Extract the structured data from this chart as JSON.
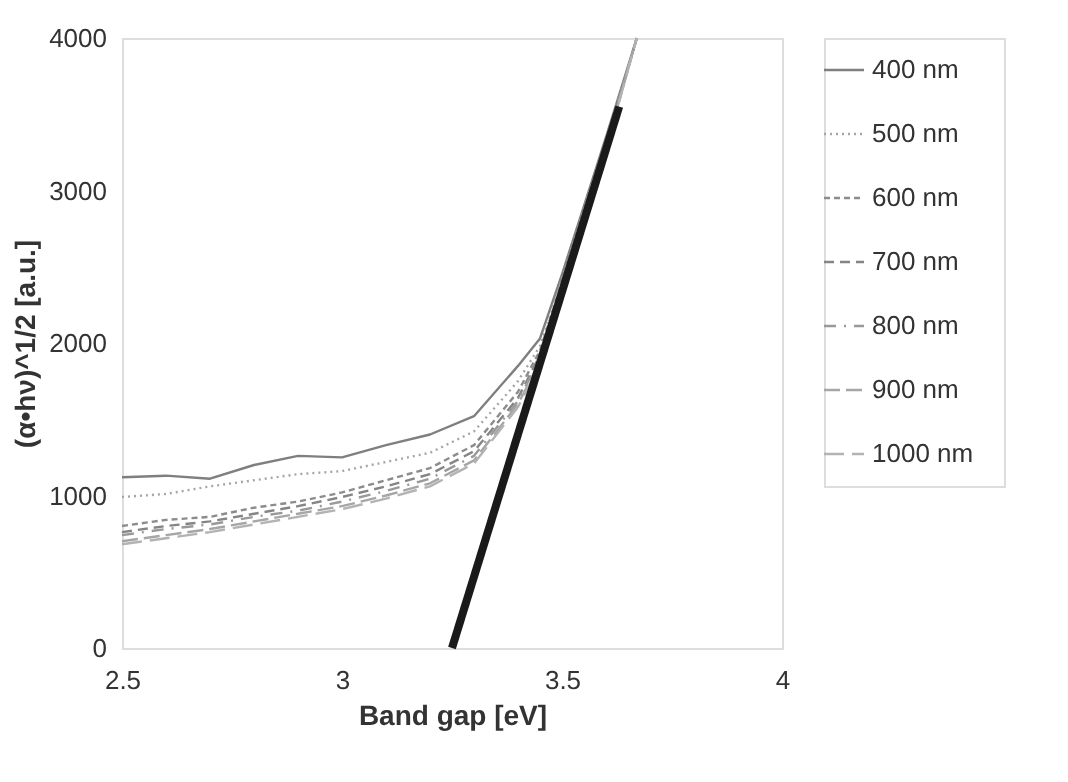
{
  "chart_data": {
    "type": "line",
    "xlabel": "Band gap [eV]",
    "ylabel": "(α•hν)^1/2 [a.u.]",
    "xlim": [
      2.5,
      4
    ],
    "xticks": [
      2.5,
      3,
      3.5,
      4
    ],
    "ylim": [
      0,
      4000
    ],
    "yticks": [
      0,
      1000,
      2000,
      3000,
      4000
    ],
    "grid": false,
    "legend": "right",
    "marker": "none",
    "x": [
      2.5,
      2.6,
      2.7,
      2.8,
      2.9,
      3.0,
      3.1,
      3.2,
      3.3,
      3.4,
      3.45,
      3.5,
      3.55,
      3.6,
      3.67
    ],
    "series": [
      {
        "name": "400 nm",
        "color": "#7f7f7f",
        "line_style": "solid",
        "values": [
          1120,
          1130,
          1110,
          1200,
          1260,
          1250,
          1330,
          1400,
          1520,
          1850,
          2030,
          2450,
          2900,
          3350,
          4000
        ]
      },
      {
        "name": "500 nm",
        "color": "#a6a6a6",
        "line_style": "dotted",
        "values": [
          990,
          1010,
          1060,
          1100,
          1140,
          1160,
          1220,
          1280,
          1420,
          1750,
          1980,
          2420,
          2880,
          3330,
          4000
        ]
      },
      {
        "name": "600 nm",
        "color": "#8c8c8c",
        "line_style": "dashed",
        "values": [
          800,
          840,
          860,
          920,
          960,
          1020,
          1100,
          1180,
          1330,
          1680,
          1950,
          2400,
          2860,
          3310,
          4000
        ]
      },
      {
        "name": "700 nm",
        "color": "#858585",
        "line_style": "dashed",
        "values": [
          760,
          800,
          830,
          880,
          930,
          990,
          1060,
          1140,
          1290,
          1640,
          1920,
          2380,
          2840,
          3300,
          4000
        ]
      },
      {
        "name": "800 nm",
        "color": "#999999",
        "line_style": "dashed",
        "values": [
          740,
          780,
          810,
          860,
          900,
          960,
          1030,
          1110,
          1260,
          1620,
          1900,
          2370,
          2830,
          3290,
          4000
        ]
      },
      {
        "name": "900 nm",
        "color": "#a6a6a6",
        "line_style": "dashed",
        "values": [
          700,
          740,
          780,
          830,
          880,
          930,
          1000,
          1080,
          1230,
          1600,
          1880,
          2360,
          2820,
          3280,
          4000
        ]
      },
      {
        "name": "1000 nm",
        "color": "#b3b3b3",
        "line_style": "dashed",
        "values": [
          680,
          720,
          760,
          810,
          860,
          910,
          980,
          1060,
          1210,
          1580,
          1860,
          2350,
          2810,
          3270,
          4000
        ]
      },
      {
        "type": "line",
        "color": "#1a1a1a",
        "line_style": "solid",
        "x": [
          3.25,
          3.63
        ],
        "values": [
          0,
          3550
        ]
      }
    ]
  }
}
